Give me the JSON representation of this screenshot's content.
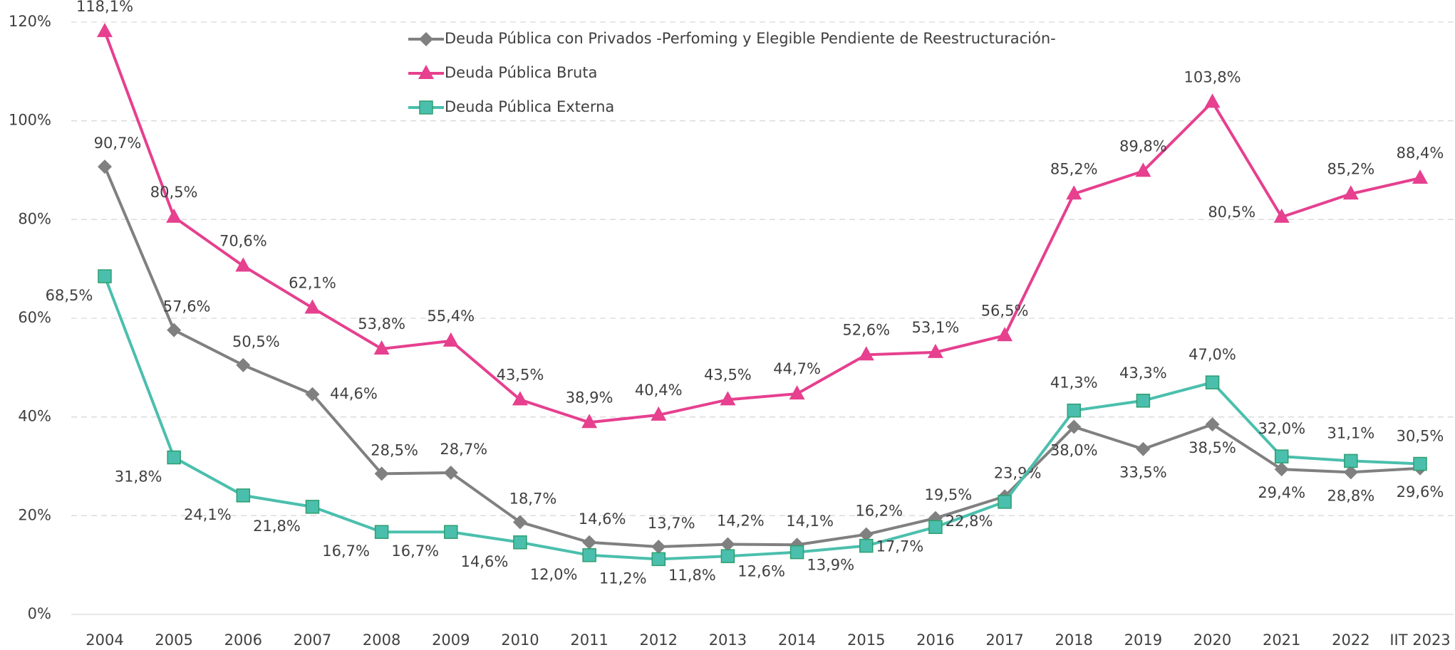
{
  "chart_data": {
    "type": "line",
    "categories": [
      "2004",
      "2005",
      "2006",
      "2007",
      "2008",
      "2009",
      "2010",
      "2011",
      "2012",
      "2013",
      "2014",
      "2015",
      "2016",
      "2017",
      "2018",
      "2019",
      "2020",
      "2021",
      "2022",
      "IIT 2023"
    ],
    "ylim": [
      0,
      120
    ],
    "yticks": [
      {
        "value": 0,
        "label": "0%"
      },
      {
        "value": 20,
        "label": "20%"
      },
      {
        "value": 40,
        "label": "40%"
      },
      {
        "value": 60,
        "label": "60%"
      },
      {
        "value": 80,
        "label": "80%"
      },
      {
        "value": 100,
        "label": "100%"
      },
      {
        "value": 120,
        "label": "120%"
      }
    ],
    "grid": true,
    "legend": "top",
    "series": [
      {
        "name": "Deuda Pública con Privados -Perfoming y Elegible Pendiente de Reestructuración-",
        "color": "#808080",
        "marker": "diamond",
        "values": [
          90.7,
          57.6,
          50.5,
          44.6,
          28.5,
          28.7,
          18.7,
          14.6,
          13.7,
          14.2,
          14.1,
          16.2,
          19.5,
          23.9,
          38.0,
          33.5,
          38.5,
          29.4,
          28.8,
          29.6
        ],
        "value_labels": [
          "90,7%",
          "57,6%",
          "50,5%",
          "44,6%",
          "28,5%",
          "28,7%",
          "18,7%",
          "14,6%",
          "13,7%",
          "14,2%",
          "14,1%",
          "16,2%",
          "19,5%",
          "23,9%",
          "38,0%",
          "33,5%",
          "38,5%",
          "29,4%",
          "28,8%",
          "29,6%"
        ]
      },
      {
        "name": "Deuda Pública Bruta",
        "color": "#e6408f",
        "marker": "triangle",
        "values": [
          118.1,
          80.5,
          70.6,
          62.1,
          53.8,
          55.4,
          43.5,
          38.9,
          40.4,
          43.5,
          44.7,
          52.6,
          53.1,
          56.5,
          85.2,
          89.8,
          103.8,
          80.5,
          85.2,
          88.4
        ],
        "value_labels": [
          "118,1%",
          "80,5%",
          "70,6%",
          "62,1%",
          "53,8%",
          "55,4%",
          "43,5%",
          "38,9%",
          "40,4%",
          "43,5%",
          "44,7%",
          "52,6%",
          "53,1%",
          "56,5%",
          "85,2%",
          "89,8%",
          "103,8%",
          "80,5%",
          "85,2%",
          "88,4%"
        ]
      },
      {
        "name": "Deuda Pública Externa",
        "color": "#4bbfad",
        "marker": "square",
        "values": [
          68.5,
          31.8,
          24.1,
          21.8,
          16.7,
          16.7,
          14.6,
          12.0,
          11.2,
          11.8,
          12.6,
          13.9,
          17.7,
          22.8,
          41.3,
          43.3,
          47.0,
          32.0,
          31.1,
          30.5
        ],
        "value_labels": [
          "68,5%",
          "31,8%",
          "24,1%",
          "21,8%",
          "16,7%",
          "16,7%",
          "14,6%",
          "12,0%",
          "11,2%",
          "11,8%",
          "12,6%",
          "13,9%",
          "17,7%",
          "22,8%",
          "41,3%",
          "43,3%",
          "47,0%",
          "32,0%",
          "31,1%",
          "30,5%"
        ]
      }
    ]
  }
}
